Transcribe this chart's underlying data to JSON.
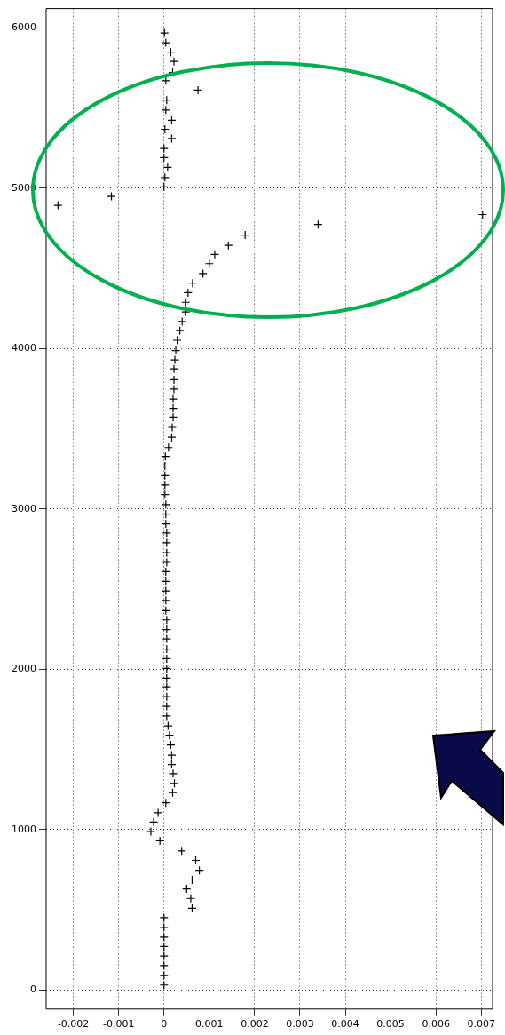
{
  "chart_data": {
    "type": "scatter",
    "xlim": [
      -0.0026,
      0.00725
    ],
    "ylim": [
      -120,
      6120
    ],
    "xticks": [
      -0.002,
      -0.001,
      0,
      0.001,
      0.002,
      0.003,
      0.004,
      0.005,
      0.006,
      0.007
    ],
    "yticks": [
      0,
      1000,
      2000,
      3000,
      4000,
      5000,
      6000
    ],
    "grid": true,
    "marker": "cross",
    "legend": false,
    "series": [
      {
        "color": "#000000",
        "x": [
          1e-05,
          4e-05,
          0.00015,
          0.00022,
          0.00019,
          4e-05,
          0.00075,
          6e-05,
          4e-05,
          0.00017,
          2e-05,
          0.00017,
          0,
          0,
          8e-05,
          2e-05,
          0,
          -0.00116,
          -0.00234,
          0.00703,
          0.0034,
          0.00179,
          0.00142,
          0.00112,
          0.001,
          0.00086,
          0.00063,
          0.00053,
          0.00048,
          0.00048,
          0.0004,
          0.00035,
          0.00029,
          0.00026,
          0.00024,
          0.00022,
          0.00022,
          0.00022,
          0.0002,
          0.0002,
          0.0002,
          0.00018,
          0.00017,
          0.0001,
          3e-05,
          2e-05,
          2e-05,
          2e-05,
          2e-05,
          4e-05,
          4e-05,
          4e-05,
          6e-05,
          6e-05,
          6e-05,
          6e-05,
          4e-05,
          4e-05,
          4e-05,
          4e-05,
          4e-05,
          6e-05,
          6e-05,
          6e-05,
          6e-05,
          6e-05,
          6e-05,
          6e-05,
          6e-05,
          6e-05,
          6e-05,
          6e-05,
          9e-05,
          0.00012,
          0.00015,
          0.00017,
          0.00017,
          0.0002,
          0.00023,
          0.00019,
          4e-05,
          -0.00013,
          -0.00023,
          -0.00029,
          -9e-05,
          0.00039,
          0.0007,
          0.00078,
          0.00062,
          0.0005,
          0.00059,
          0.00062,
          0,
          0,
          0,
          0,
          0,
          0,
          0,
          0
        ],
        "values": [
          5968,
          5907,
          5848,
          5790,
          5721,
          5670,
          5611,
          5549,
          5487,
          5423,
          5367,
          5309,
          5247,
          5190,
          5130,
          5066,
          5008,
          4948,
          4893,
          4835,
          4773,
          4707,
          4643,
          4587,
          4529,
          4467,
          4407,
          4348,
          4288,
          4228,
          4168,
          4111,
          4051,
          3987,
          3929,
          3873,
          3805,
          3747,
          3685,
          3627,
          3572,
          3508,
          3446,
          3382,
          3327,
          3267,
          3207,
          3149,
          3089,
          3027,
          2967,
          2906,
          2849,
          2788,
          2726,
          2666,
          2608,
          2548,
          2488,
          2429,
          2365,
          2307,
          2247,
          2189,
          2125,
          2065,
          2004,
          1943,
          1890,
          1828,
          1768,
          1708,
          1646,
          1587,
          1527,
          1463,
          1405,
          1348,
          1287,
          1230,
          1166,
          1104,
          1046,
          987,
          929,
          866,
          807,
          745,
          685,
          629,
          570,
          508,
          450,
          388,
          328,
          270,
          211,
          151,
          89,
          30
        ]
      }
    ]
  }
}
